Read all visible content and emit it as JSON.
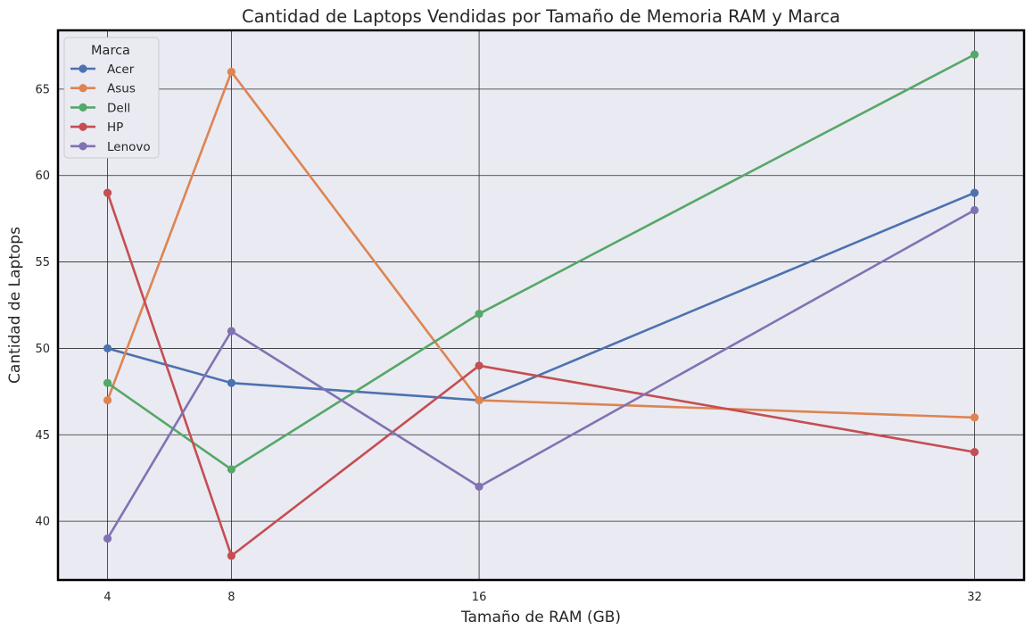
{
  "chart_data": {
    "type": "line",
    "title": "Cantidad de Laptops Vendidas por Tamaño de Memoria RAM y Marca",
    "xlabel": "Tamaño de RAM (GB)",
    "ylabel": "Cantidad de Laptops",
    "x": [
      4,
      8,
      16,
      32
    ],
    "x_ticks": [
      "4",
      "8",
      "16",
      "32"
    ],
    "y_ticks": [
      "40",
      "45",
      "50",
      "55",
      "60",
      "65"
    ],
    "xlim": [
      2.4,
      33.6
    ],
    "ylim": [
      36.6,
      68.4
    ],
    "grid": true,
    "legend": {
      "title": "Marca",
      "placement": "top-left"
    },
    "series": [
      {
        "name": "Acer",
        "color": "#4c72b0",
        "values": [
          50,
          48,
          47,
          59
        ]
      },
      {
        "name": "Asus",
        "color": "#dd8452",
        "values": [
          47,
          66,
          47,
          46
        ]
      },
      {
        "name": "Dell",
        "color": "#55a868",
        "values": [
          48,
          43,
          52,
          67
        ]
      },
      {
        "name": "HP",
        "color": "#c44e52",
        "values": [
          59,
          38,
          49,
          44
        ]
      },
      {
        "name": "Lenovo",
        "color": "#8172b3",
        "values": [
          39,
          51,
          42,
          58
        ]
      }
    ],
    "colors": {
      "plot_background": "#eaeaf2",
      "grid": "#2b2b2b",
      "frame": "#000000"
    }
  }
}
